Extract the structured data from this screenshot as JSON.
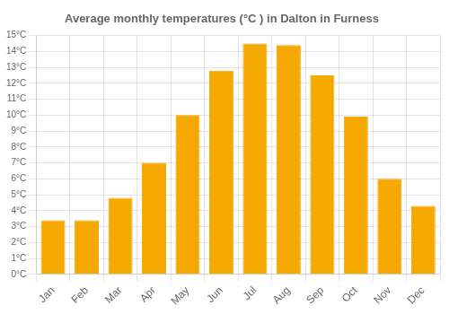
{
  "chart_data": {
    "type": "bar",
    "title": "Average monthly temperatures (°C ) in Dalton in Furness",
    "categories": [
      "Jan",
      "Feb",
      "Mar",
      "Apr",
      "May",
      "Jun",
      "Jul",
      "Aug",
      "Sep",
      "Oct",
      "Nov",
      "Dec"
    ],
    "values": [
      3.4,
      3.4,
      4.8,
      7.0,
      10.0,
      12.8,
      14.5,
      14.4,
      12.5,
      9.9,
      6.0,
      4.3
    ],
    "color": "#F5A800",
    "ylim": [
      0,
      15
    ],
    "yticks": [
      {
        "value": 0,
        "label": "0°C"
      },
      {
        "value": 1,
        "label": "1°C"
      },
      {
        "value": 2,
        "label": "2°C"
      },
      {
        "value": 3,
        "label": "3°C"
      },
      {
        "value": 4,
        "label": "4°C"
      },
      {
        "value": 5,
        "label": "5°C"
      },
      {
        "value": 6,
        "label": "6°C"
      },
      {
        "value": 7,
        "label": "7°C"
      },
      {
        "value": 8,
        "label": "8°C"
      },
      {
        "value": 9,
        "label": "9°C"
      },
      {
        "value": 10,
        "label": "10°C"
      },
      {
        "value": 11,
        "label": "11°C"
      },
      {
        "value": 12,
        "label": "12°C"
      },
      {
        "value": 13,
        "label": "13°C"
      },
      {
        "value": 14,
        "label": "14°C"
      },
      {
        "value": 15,
        "label": "15°C"
      }
    ],
    "grid": true
  }
}
